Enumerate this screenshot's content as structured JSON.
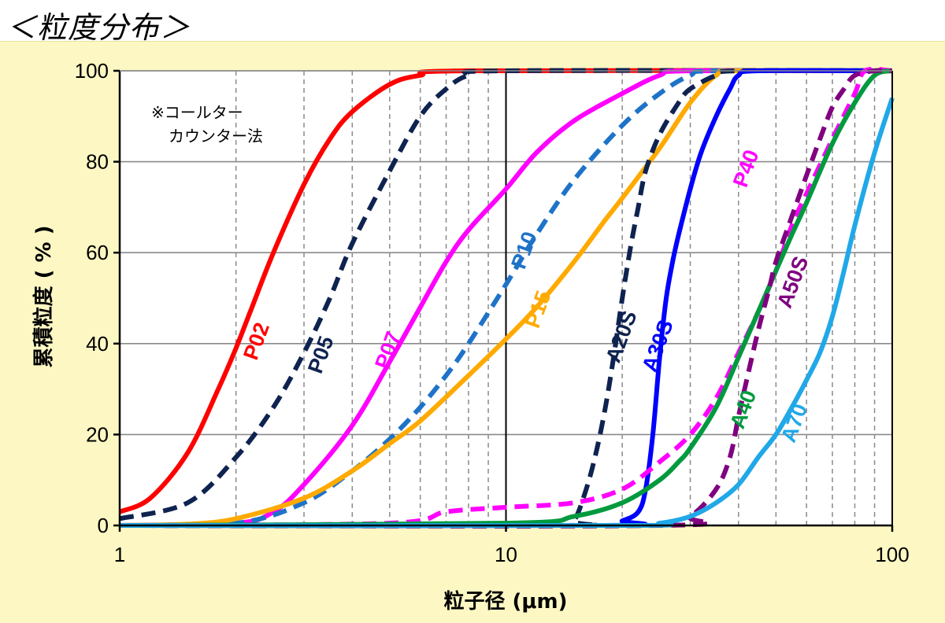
{
  "title": "＜粒度分布＞",
  "chart_data": {
    "type": "line",
    "xscale": "log",
    "xlim": [
      1,
      100
    ],
    "ylim": [
      0,
      100
    ],
    "xlabel": "粒子径 (μm)",
    "ylabel": "累積粒度 ( % )",
    "xticks": [
      "1",
      "10",
      "100"
    ],
    "yticks": [
      "0",
      "20",
      "40",
      "60",
      "80",
      "100"
    ],
    "grid": true,
    "note_lines": [
      "※コールター",
      "カウンター法"
    ],
    "series": [
      {
        "name": "P02",
        "color": "#ff0000",
        "dash": false,
        "points": [
          [
            1,
            3
          ],
          [
            1.2,
            6
          ],
          [
            1.5,
            16
          ],
          [
            1.8,
            30
          ],
          [
            2,
            39
          ],
          [
            2.2,
            48
          ],
          [
            2.5,
            60
          ],
          [
            3,
            75
          ],
          [
            3.5,
            85
          ],
          [
            4,
            91
          ],
          [
            5,
            97
          ],
          [
            6,
            99
          ],
          [
            8,
            100
          ],
          [
            100,
            100
          ]
        ]
      },
      {
        "name": "P05",
        "color": "#0f2350",
        "dash": true,
        "points": [
          [
            1,
            1.5
          ],
          [
            1.5,
            5
          ],
          [
            2,
            15
          ],
          [
            2.5,
            26
          ],
          [
            3,
            38
          ],
          [
            3.5,
            50
          ],
          [
            4,
            62
          ],
          [
            5,
            78
          ],
          [
            6,
            90
          ],
          [
            7,
            96
          ],
          [
            8,
            99
          ],
          [
            10,
            100
          ],
          [
            100,
            100
          ]
        ]
      },
      {
        "name": "P07",
        "color": "#ff00ff",
        "dash": false,
        "points": [
          [
            1,
            0
          ],
          [
            2,
            0.5
          ],
          [
            2.5,
            3
          ],
          [
            3,
            9
          ],
          [
            4,
            22
          ],
          [
            5,
            36
          ],
          [
            6,
            48
          ],
          [
            7,
            58
          ],
          [
            8,
            65
          ],
          [
            10,
            74
          ],
          [
            12,
            82
          ],
          [
            15,
            89
          ],
          [
            20,
            95
          ],
          [
            25,
            99
          ],
          [
            30,
            100
          ],
          [
            100,
            100
          ]
        ]
      },
      {
        "name": "P10",
        "color": "#1e73c8",
        "dash": true,
        "points": [
          [
            1,
            0
          ],
          [
            2,
            0.5
          ],
          [
            3,
            5
          ],
          [
            4,
            12
          ],
          [
            5,
            19
          ],
          [
            6,
            26
          ],
          [
            7,
            33
          ],
          [
            8,
            40
          ],
          [
            10,
            53
          ],
          [
            12,
            64
          ],
          [
            15,
            76
          ],
          [
            20,
            88
          ],
          [
            25,
            95
          ],
          [
            30,
            99
          ],
          [
            35,
            100
          ],
          [
            100,
            100
          ]
        ]
      },
      {
        "name": "P15",
        "color": "#ffaa00",
        "dash": false,
        "points": [
          [
            1,
            0
          ],
          [
            1.5,
            0.3
          ],
          [
            2,
            1.5
          ],
          [
            3,
            6
          ],
          [
            4,
            12
          ],
          [
            5,
            18
          ],
          [
            6,
            23
          ],
          [
            8,
            33
          ],
          [
            10,
            41
          ],
          [
            12,
            48
          ],
          [
            15,
            58
          ],
          [
            18,
            67
          ],
          [
            20,
            72
          ],
          [
            25,
            83
          ],
          [
            30,
            93
          ],
          [
            35,
            99
          ],
          [
            40,
            100
          ],
          [
            100,
            100
          ]
        ]
      },
      {
        "name": "A20S",
        "color": "#0f2350",
        "dash": true,
        "points": [
          [
            1,
            0
          ],
          [
            14,
            0
          ],
          [
            15,
            1
          ],
          [
            16,
            7
          ],
          [
            17,
            15
          ],
          [
            18,
            25
          ],
          [
            19,
            37
          ],
          [
            20,
            50
          ],
          [
            21,
            61
          ],
          [
            22,
            70
          ],
          [
            23,
            78
          ],
          [
            25,
            86
          ],
          [
            28,
            93
          ],
          [
            30,
            96
          ],
          [
            35,
            99
          ],
          [
            40,
            100
          ],
          [
            100,
            100
          ]
        ]
      },
      {
        "name": "A30S",
        "color": "#0000ff",
        "dash": false,
        "points": [
          [
            1,
            0
          ],
          [
            18,
            0
          ],
          [
            20,
            1
          ],
          [
            22,
            3
          ],
          [
            23,
            8
          ],
          [
            24,
            20
          ],
          [
            25,
            37
          ],
          [
            26,
            50
          ],
          [
            27,
            58
          ],
          [
            28,
            64
          ],
          [
            30,
            74
          ],
          [
            32,
            82
          ],
          [
            35,
            90
          ],
          [
            38,
            96
          ],
          [
            40,
            99
          ],
          [
            45,
            100
          ],
          [
            100,
            100
          ]
        ]
      },
      {
        "name": "P40",
        "color": "#ff00ff",
        "dash": true,
        "points": [
          [
            1,
            0
          ],
          [
            5,
            0.5
          ],
          [
            7,
            3
          ],
          [
            10,
            4
          ],
          [
            15,
            5
          ],
          [
            20,
            8
          ],
          [
            25,
            14
          ],
          [
            30,
            20
          ],
          [
            35,
            28
          ],
          [
            40,
            38
          ],
          [
            45,
            47
          ],
          [
            50,
            56
          ],
          [
            55,
            66
          ],
          [
            60,
            73
          ],
          [
            70,
            85
          ],
          [
            80,
            95
          ],
          [
            85,
            100
          ],
          [
            100,
            100
          ]
        ]
      },
      {
        "name": "A40",
        "color": "#009a3e",
        "dash": false,
        "points": [
          [
            1,
            0
          ],
          [
            10,
            0.5
          ],
          [
            15,
            2
          ],
          [
            20,
            5
          ],
          [
            25,
            10
          ],
          [
            28,
            14
          ],
          [
            30,
            17
          ],
          [
            35,
            26
          ],
          [
            40,
            37
          ],
          [
            45,
            47
          ],
          [
            50,
            56
          ],
          [
            55,
            64
          ],
          [
            60,
            71
          ],
          [
            70,
            84
          ],
          [
            80,
            93
          ],
          [
            90,
            99
          ],
          [
            100,
            100
          ]
        ]
      },
      {
        "name": "A50S",
        "color": "#800080",
        "dash": true,
        "points": [
          [
            1,
            0
          ],
          [
            25,
            0
          ],
          [
            30,
            2
          ],
          [
            35,
            8
          ],
          [
            38,
            15
          ],
          [
            40,
            24
          ],
          [
            42,
            32
          ],
          [
            45,
            43
          ],
          [
            48,
            52
          ],
          [
            50,
            58
          ],
          [
            55,
            68
          ],
          [
            60,
            77
          ],
          [
            65,
            85
          ],
          [
            70,
            92
          ],
          [
            75,
            96
          ],
          [
            80,
            99
          ],
          [
            90,
            100
          ],
          [
            100,
            100
          ]
        ]
      },
      {
        "name": "A70",
        "color": "#20a8e8",
        "dash": false,
        "points": [
          [
            1,
            0
          ],
          [
            20,
            0
          ],
          [
            25,
            0.5
          ],
          [
            30,
            2
          ],
          [
            35,
            5
          ],
          [
            40,
            9
          ],
          [
            45,
            15
          ],
          [
            50,
            20
          ],
          [
            55,
            26
          ],
          [
            60,
            32
          ],
          [
            65,
            38
          ],
          [
            70,
            46
          ],
          [
            75,
            56
          ],
          [
            80,
            66
          ],
          [
            90,
            82
          ],
          [
            100,
            94
          ]
        ]
      }
    ]
  }
}
